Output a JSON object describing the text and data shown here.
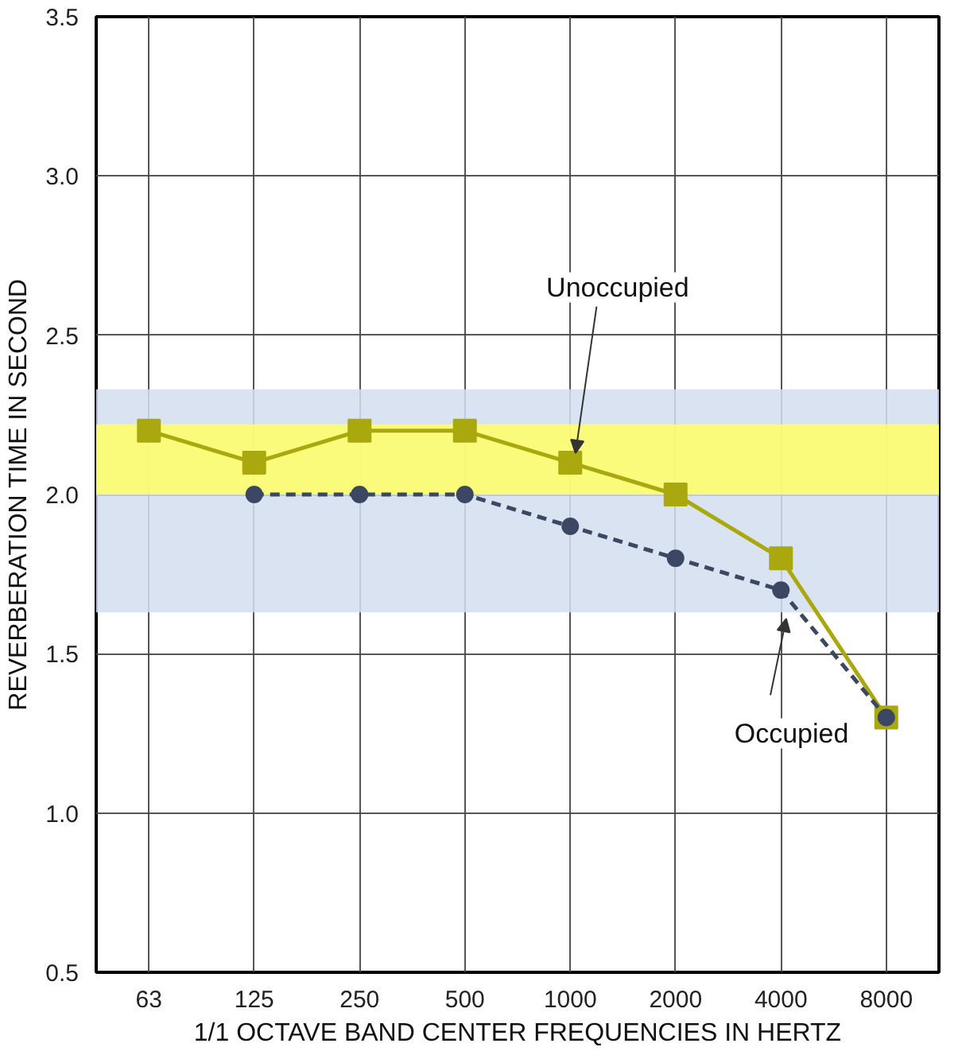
{
  "chart_data": {
    "type": "line",
    "xlabel": "1/1 OCTAVE BAND CENTER FREQUENCIES IN HERTZ",
    "ylabel": "REVERBERATION TIME IN SECOND",
    "categories": [
      "63",
      "125",
      "250",
      "500",
      "1000",
      "2000",
      "4000",
      "8000"
    ],
    "series": [
      {
        "name": "Unoccupied",
        "color": "#a9a90f",
        "marker": "square",
        "line_style": "solid",
        "values": [
          2.2,
          2.1,
          2.2,
          2.2,
          2.1,
          2.0,
          1.8,
          1.3
        ]
      },
      {
        "name": "Occupied",
        "color": "#3b4763",
        "marker": "circle",
        "line_style": "dashed",
        "values": [
          null,
          2.0,
          2.0,
          2.0,
          1.9,
          1.8,
          1.7,
          1.3
        ]
      }
    ],
    "ylim": [
      0.5,
      3.5
    ],
    "yticks": [
      0.5,
      {
        "value": 1,
        "label": "1.0"
      },
      1.5,
      {
        "value": 2,
        "label": "2.0"
      },
      2.5,
      {
        "value": 3,
        "label": "3.0"
      },
      3.5
    ],
    "grid": true,
    "bands": [
      {
        "axis": "y",
        "from": 1.63,
        "to": 2.33,
        "color": "#d3deee"
      },
      {
        "axis": "y",
        "from": 2.0,
        "to": 2.22,
        "color": "#ffff66"
      }
    ]
  }
}
